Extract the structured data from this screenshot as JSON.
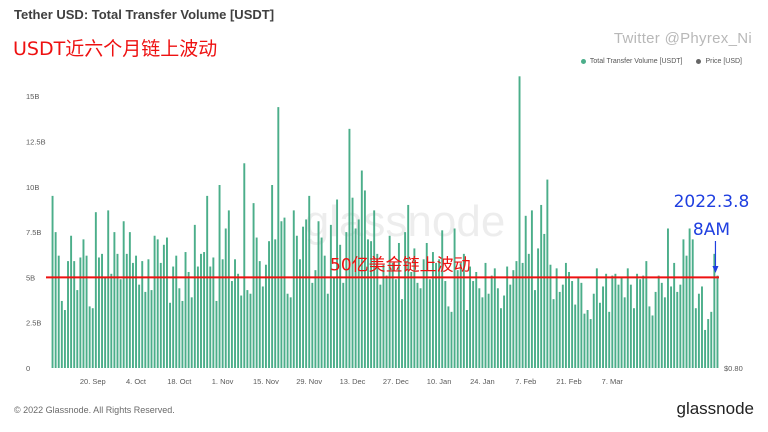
{
  "header": {
    "title": "Tether USD: Total Transfer Volume [USDT]",
    "annotation": "USDT近六个月链上波动",
    "twitter": "Twitter @Phyrex_Ni"
  },
  "footer": {
    "copyright": "© 2022 Glassnode. All Rights Reserved.",
    "brand": "glassnode"
  },
  "watermark": "glassnode",
  "colors": {
    "bar": "#4bae8a",
    "price": "#666666",
    "reference_line": "#ee1111",
    "date_annotation": "#1f3fe0"
  },
  "chart_data": {
    "type": "bar",
    "title": "Tether USD: Total Transfer Volume [USDT]",
    "legend": [
      "Total Transfer Volume [USDT]",
      "Price [USD]"
    ],
    "legend_position": "top-right",
    "grid": false,
    "ylim": [
      0,
      17000000000
    ],
    "y_ticks": [
      {
        "value": 0,
        "label": "0"
      },
      {
        "value": 2500000000,
        "label": "2.5B"
      },
      {
        "value": 5000000000,
        "label": "5B"
      },
      {
        "value": 7500000000,
        "label": "7.5B"
      },
      {
        "value": 10000000000,
        "label": "10B"
      },
      {
        "value": 12500000000,
        "label": "12.5B"
      },
      {
        "value": 15000000000,
        "label": "15B"
      }
    ],
    "x_ticks": [
      {
        "index": 13,
        "label": "20. Sep"
      },
      {
        "index": 27,
        "label": "4. Oct"
      },
      {
        "index": 41,
        "label": "18. Oct"
      },
      {
        "index": 55,
        "label": "1. Nov"
      },
      {
        "index": 69,
        "label": "15. Nov"
      },
      {
        "index": 83,
        "label": "29. Nov"
      },
      {
        "index": 97,
        "label": "13. Dec"
      },
      {
        "index": 111,
        "label": "27. Dec"
      },
      {
        "index": 125,
        "label": "10. Jan"
      },
      {
        "index": 139,
        "label": "24. Jan"
      },
      {
        "index": 153,
        "label": "7. Feb"
      },
      {
        "index": 167,
        "label": "21. Feb"
      },
      {
        "index": 181,
        "label": "7. Mar"
      }
    ],
    "price_label": "$0.80",
    "values": [
      9.5,
      7.5,
      6.2,
      3.7,
      3.2,
      5.9,
      7.3,
      5.9,
      4.3,
      6.1,
      7.1,
      6.2,
      3.4,
      3.3,
      8.6,
      6.1,
      6.3,
      5.0,
      8.7,
      5.2,
      7.5,
      6.3,
      4.9,
      8.1,
      6.3,
      7.5,
      5.8,
      6.2,
      4.6,
      5.9,
      4.2,
      6.0,
      4.3,
      7.3,
      7.1,
      5.8,
      6.8,
      7.2,
      3.6,
      5.6,
      6.2,
      4.4,
      3.7,
      6.4,
      5.3,
      3.9,
      7.9,
      5.6,
      6.3,
      6.4,
      9.5,
      5.6,
      6.1,
      3.7,
      10.1,
      6.0,
      7.7,
      8.7,
      4.8,
      6.0,
      5.2,
      4.0,
      11.3,
      4.3,
      4.1,
      9.1,
      7.2,
      5.9,
      4.5,
      5.7,
      7.0,
      10.1,
      7.1,
      14.4,
      8.1,
      8.3,
      4.1,
      3.9,
      8.7,
      7.3,
      6.0,
      7.8,
      8.2,
      9.5,
      4.7,
      5.4,
      8.1,
      7.2,
      6.2,
      4.1,
      7.9,
      5.0,
      9.3,
      6.8,
      4.7,
      7.5,
      13.2,
      9.4,
      7.7,
      8.2,
      10.9,
      9.8,
      7.1,
      7.0,
      8.7,
      6.3,
      4.6,
      5.7,
      5.1,
      7.3,
      5.8,
      4.9,
      6.9,
      3.8,
      7.5,
      9.0,
      5.3,
      6.6,
      4.7,
      4.4,
      6.0,
      6.9,
      4.9,
      6.4,
      5.8,
      6.0,
      7.6,
      4.8,
      3.4,
      3.1,
      7.7,
      5.4,
      5.8,
      6.3,
      3.2,
      5.6,
      4.8,
      5.3,
      4.4,
      3.9,
      5.8,
      4.1,
      5.1,
      5.5,
      4.4,
      3.3,
      4.0,
      5.6,
      4.6,
      5.4,
      5.9,
      16.1,
      5.8,
      8.4,
      6.3,
      8.7,
      4.3,
      6.6,
      9.0,
      7.4,
      10.4,
      5.7,
      3.8,
      5.5,
      4.2,
      4.6,
      5.8,
      5.3,
      4.8,
      3.5,
      5.0,
      4.7,
      3.0,
      3.2,
      2.7,
      4.1,
      5.5,
      3.6,
      4.5,
      5.2,
      3.1,
      5.1,
      5.2,
      4.6,
      5.0,
      3.9,
      5.5,
      4.6,
      3.3,
      5.2,
      4.9,
      5.1,
      5.9,
      3.4,
      2.9,
      4.2,
      5.1,
      4.7,
      3.9,
      7.7,
      4.5,
      5.8,
      4.2,
      4.6,
      7.1,
      6.2,
      7.7,
      7.1,
      3.3,
      4.1,
      4.5,
      2.1,
      2.7,
      3.1,
      6.3,
      5.1
    ],
    "values_unit": "B USDT",
    "reference_line": {
      "value": 5000000000,
      "label": "50亿美金链上波动"
    },
    "annotation": {
      "text_line1": "2022.3.8",
      "text_line2": "8AM",
      "at": "last bar"
    }
  }
}
